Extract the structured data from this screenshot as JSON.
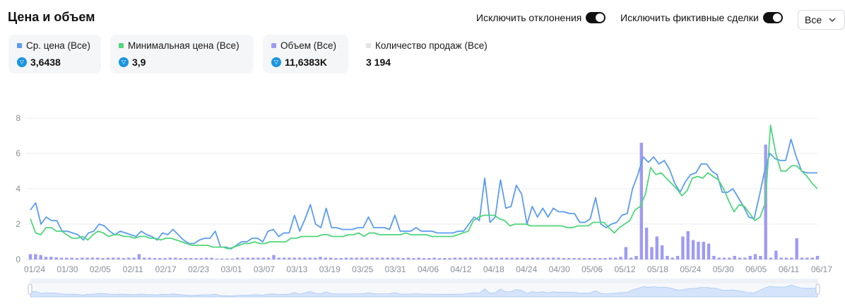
{
  "header": {
    "title": "Цена и объем",
    "toggle_outliers_label": "Исключить отклонения",
    "toggle_fake_label": "Исключить фиктивные сделки",
    "filter_value": "Все"
  },
  "stats": [
    {
      "label": "Ср. цена (Все)",
      "value": "3,6438",
      "currency_icon": "ton-icon",
      "color": "#5b9cf0"
    },
    {
      "label": "Минимальная цена (Все)",
      "value": "3,9",
      "currency_icon": "ton-icon",
      "color": "#4fd67b"
    },
    {
      "label": "Объем (Все)",
      "value": "11,6383K",
      "currency_icon": "ton-icon",
      "color": "#9e9bf5"
    },
    {
      "label": "Количество продаж (Все)",
      "value": "3 194",
      "currency_icon": "",
      "color": "#e4e4e4"
    }
  ],
  "chart_data": {
    "type": "line",
    "x_tick_labels": [
      "01/24",
      "01/30",
      "02/05",
      "02/11",
      "02/17",
      "02/23",
      "03/01",
      "03/07",
      "03/13",
      "03/19",
      "03/25",
      "03/31",
      "04/06",
      "04/12",
      "04/18",
      "04/24",
      "04/30",
      "05/06",
      "05/12",
      "05/18",
      "05/24",
      "05/30",
      "06/05",
      "06/11",
      "06/17"
    ],
    "y_ticks": [
      0,
      2,
      4,
      6,
      8
    ],
    "ylim": [
      0,
      8
    ],
    "grid": true,
    "series": [
      {
        "name": "Ср. цена (Все)",
        "type": "line",
        "color": "#5b9cf0",
        "values": [
          2.8,
          3.2,
          2.0,
          2.4,
          2.2,
          2.2,
          1.6,
          1.6,
          1.5,
          1.4,
          1.1,
          1.5,
          1.6,
          2.0,
          1.9,
          1.6,
          1.4,
          1.6,
          1.5,
          1.4,
          1.3,
          1.6,
          1.4,
          1.3,
          1.1,
          1.5,
          1.4,
          1.7,
          1.4,
          1.1,
          0.9,
          0.9,
          1.1,
          1.2,
          1.2,
          1.6,
          0.7,
          0.7,
          0.6,
          0.8,
          1.0,
          1.0,
          1.2,
          1.2,
          1.0,
          1.6,
          1.7,
          1.3,
          1.5,
          1.5,
          2.5,
          1.6,
          2.3,
          3.1,
          2.0,
          1.8,
          2.9,
          1.8,
          1.8,
          1.7,
          1.7,
          1.7,
          1.8,
          1.8,
          2.4,
          1.8,
          1.8,
          1.8,
          1.7,
          2.5,
          1.6,
          1.6,
          1.6,
          1.8,
          1.6,
          1.6,
          1.6,
          1.5,
          1.5,
          1.5,
          1.5,
          1.6,
          1.6,
          2.0,
          2.4,
          2.2,
          4.6,
          2.1,
          2.4,
          4.5,
          2.9,
          3.0,
          4.2,
          3.7,
          2.0,
          3.0,
          2.4,
          2.9,
          2.4,
          2.9,
          2.7,
          2.7,
          2.6,
          2.6,
          2.1,
          2.1,
          2.3,
          3.5,
          2.0,
          1.8,
          2.0,
          2.1,
          2.5,
          2.6,
          4.0,
          4.8,
          5.8,
          5.5,
          5.8,
          5.4,
          5.6,
          5.1,
          4.3,
          3.8,
          4.4,
          4.8,
          4.9,
          5.4,
          5.4,
          5.0,
          4.8,
          3.8,
          3.8,
          4.0,
          3.5,
          3.0,
          2.4,
          2.3,
          3.6,
          5.0,
          6.0,
          5.7,
          5.6,
          5.6,
          6.8,
          5.8,
          5.0,
          4.9,
          4.9,
          4.9
        ]
      },
      {
        "name": "Минимальная цена (Все)",
        "type": "line",
        "color": "#4fd67b",
        "values": [
          2.3,
          1.5,
          1.4,
          1.8,
          1.8,
          1.6,
          1.6,
          1.4,
          1.2,
          1.2,
          1.3,
          1.1,
          1.4,
          1.6,
          1.5,
          1.3,
          1.4,
          1.4,
          1.3,
          1.3,
          1.2,
          1.3,
          1.3,
          1.2,
          1.2,
          1.1,
          1.2,
          1.2,
          1.1,
          1.0,
          0.9,
          0.8,
          0.8,
          0.8,
          0.8,
          0.7,
          0.7,
          0.7,
          0.6,
          0.7,
          0.8,
          0.9,
          0.9,
          1.0,
          0.9,
          0.9,
          1.0,
          1.0,
          1.0,
          1.0,
          1.2,
          1.2,
          1.3,
          1.3,
          1.3,
          1.3,
          1.4,
          1.4,
          1.3,
          1.3,
          1.3,
          1.4,
          1.4,
          1.5,
          1.3,
          1.5,
          1.5,
          1.4,
          1.4,
          1.4,
          1.4,
          1.4,
          1.5,
          1.4,
          1.4,
          1.4,
          1.4,
          1.3,
          1.3,
          1.3,
          1.3,
          1.3,
          1.4,
          1.5,
          1.6,
          2.2,
          2.4,
          2.5,
          2.5,
          2.5,
          2.3,
          2.2,
          1.9,
          2.0,
          2.0,
          2.0,
          1.9,
          1.9,
          1.9,
          1.9,
          1.9,
          1.9,
          1.9,
          1.8,
          1.8,
          1.9,
          1.9,
          1.9,
          2.1,
          2.1,
          2.1,
          1.8,
          1.5,
          1.8,
          2.0,
          2.2,
          2.8,
          3.0,
          3.7,
          5.2,
          4.8,
          4.9,
          4.6,
          4.3,
          4.0,
          3.6,
          3.9,
          4.6,
          4.7,
          4.6,
          4.9,
          4.7,
          4.5,
          4.0,
          3.3,
          2.7,
          3.1,
          3.0,
          2.6,
          2.2,
          2.4,
          3.2,
          7.6,
          6.0,
          5.0,
          5.0,
          5.3,
          5.3,
          5.0,
          4.7,
          4.3,
          4.0
        ]
      },
      {
        "name": "Объем (Все)",
        "type": "bar",
        "color": "#9e9bf5",
        "values": [
          0.3,
          0.3,
          0.25,
          0.15,
          0.15,
          0.12,
          0.1,
          0.1,
          0.1,
          0.08,
          0.1,
          0.1,
          0.1,
          0.1,
          0.08,
          0.1,
          0.1,
          0.1,
          0.08,
          0.1,
          0.1,
          0.3,
          0.1,
          0.1,
          0.08,
          0.08,
          0.08,
          0.1,
          0.1,
          0.08,
          0.08,
          0.08,
          0.08,
          0.08,
          0.1,
          0.1,
          0.05,
          0.05,
          0.05,
          0.05,
          0.1,
          0.1,
          0.1,
          0.1,
          0.1,
          0.1,
          0.1,
          0.25,
          0.1,
          0.1,
          0.1,
          0.1,
          0.1,
          0.1,
          0.1,
          0.1,
          0.15,
          0.1,
          0.1,
          0.08,
          0.08,
          0.1,
          0.1,
          0.1,
          0.1,
          0.1,
          0.1,
          0.1,
          0.1,
          0.1,
          0.1,
          0.1,
          0.08,
          0.1,
          0.08,
          0.1,
          0.08,
          0.08,
          0.1,
          0.08,
          0.08,
          0.08,
          0.1,
          0.1,
          0.1,
          0.1,
          0.1,
          0.1,
          0.1,
          0.1,
          0.1,
          0.1,
          0.1,
          0.1,
          0.1,
          0.1,
          0.1,
          0.1,
          0.1,
          0.1,
          0.1,
          0.1,
          0.1,
          0.08,
          0.08,
          0.08,
          0.08,
          0.08,
          0.08,
          0.08,
          0.08,
          0.08,
          0.1,
          0.1,
          0.15,
          0.7,
          0.1,
          0.2,
          6.6,
          1.8,
          0.7,
          1.3,
          0.8,
          0.2,
          0.1,
          0.2,
          1.3,
          1.6,
          1.1,
          1.0,
          1.0,
          0.9,
          0.2,
          0.1,
          0.1,
          0.1,
          0.2,
          0.1,
          0.1,
          0.2,
          0.3,
          0.2,
          6.5,
          0.1,
          0.5,
          0.1,
          0.1,
          0.1,
          1.2,
          0.1,
          0.1,
          0.1,
          0.2
        ]
      }
    ]
  }
}
